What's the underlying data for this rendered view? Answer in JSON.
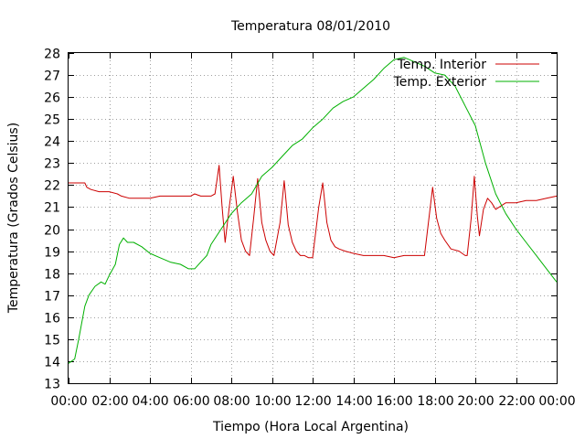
{
  "chart_data": {
    "type": "line",
    "title": "Temperatura 08/01/2010",
    "xlabel": "Tiempo (Hora Local Argentina)",
    "ylabel": "Temperatura (Grados Celsius)",
    "xlim": [
      0,
      24
    ],
    "ylim": [
      13,
      28
    ],
    "grid": true,
    "legend_position": "top-right",
    "x_ticks": [
      "00:00",
      "02:00",
      "04:00",
      "06:00",
      "08:00",
      "10:00",
      "12:00",
      "14:00",
      "16:00",
      "18:00",
      "20:00",
      "22:00",
      "00:00"
    ],
    "y_ticks": [
      "13",
      "14",
      "15",
      "16",
      "17",
      "18",
      "19",
      "20",
      "21",
      "22",
      "23",
      "24",
      "25",
      "26",
      "27",
      "28"
    ],
    "series": [
      {
        "name": "Temp. Interior",
        "color": "#cc0000",
        "x": [
          0,
          0.8,
          0.9,
          1.1,
          1.5,
          2.0,
          2.4,
          2.6,
          3.0,
          3.5,
          4.0,
          4.5,
          5.0,
          5.5,
          6.0,
          6.2,
          6.5,
          7.0,
          7.2,
          7.4,
          7.55,
          7.7,
          7.9,
          8.1,
          8.3,
          8.5,
          8.7,
          8.9,
          9.1,
          9.3,
          9.5,
          9.7,
          9.9,
          10.1,
          10.4,
          10.6,
          10.8,
          11.0,
          11.2,
          11.4,
          11.6,
          11.8,
          12.0,
          12.3,
          12.5,
          12.7,
          12.9,
          13.1,
          13.3,
          13.6,
          14.0,
          14.5,
          15.0,
          15.5,
          16.0,
          16.5,
          17.0,
          17.5,
          17.9,
          18.1,
          18.3,
          18.5,
          18.8,
          19.2,
          19.5,
          19.6,
          19.8,
          19.95,
          20.1,
          20.2,
          20.4,
          20.6,
          20.8,
          21.0,
          21.5,
          22.0,
          22.5,
          23.0,
          23.5,
          24.0
        ],
        "y": [
          22.1,
          22.1,
          21.9,
          21.8,
          21.7,
          21.7,
          21.6,
          21.5,
          21.4,
          21.4,
          21.4,
          21.5,
          21.5,
          21.5,
          21.5,
          21.6,
          21.5,
          21.5,
          21.6,
          22.9,
          21.0,
          19.4,
          21.0,
          22.4,
          20.8,
          19.5,
          19.0,
          18.8,
          20.5,
          22.3,
          20.3,
          19.5,
          19.0,
          18.8,
          20.3,
          22.2,
          20.2,
          19.4,
          19.0,
          18.8,
          18.8,
          18.7,
          18.7,
          21.0,
          22.1,
          20.3,
          19.5,
          19.2,
          19.1,
          19.0,
          18.9,
          18.8,
          18.8,
          18.8,
          18.7,
          18.8,
          18.8,
          18.8,
          21.9,
          20.5,
          19.8,
          19.5,
          19.1,
          19.0,
          18.8,
          18.8,
          20.5,
          22.4,
          20.6,
          19.7,
          20.9,
          21.4,
          21.2,
          20.9,
          21.2,
          21.2,
          21.3,
          21.3,
          21.4,
          21.5
        ]
      },
      {
        "name": "Temp. Exterior",
        "color": "#00b000",
        "x": [
          0,
          0.3,
          0.5,
          0.8,
          1.0,
          1.3,
          1.6,
          1.8,
          2.0,
          2.3,
          2.5,
          2.7,
          2.9,
          3.2,
          3.6,
          4.0,
          4.5,
          5.0,
          5.5,
          5.9,
          6.2,
          6.5,
          6.8,
          7.0,
          7.5,
          8.0,
          8.5,
          9.0,
          9.5,
          10.0,
          10.5,
          11.0,
          11.5,
          12.0,
          12.5,
          13.0,
          13.5,
          14.0,
          14.5,
          15.0,
          15.5,
          16.0,
          16.5,
          17.0,
          17.5,
          18.0,
          18.5,
          19.0,
          19.5,
          20.0,
          20.5,
          21.0,
          21.5,
          22.0,
          22.5,
          23.0,
          23.5,
          24.0
        ],
        "y": [
          13.9,
          14.1,
          15.0,
          16.5,
          17.0,
          17.4,
          17.6,
          17.5,
          17.9,
          18.4,
          19.3,
          19.6,
          19.4,
          19.4,
          19.2,
          18.9,
          18.7,
          18.5,
          18.4,
          18.2,
          18.2,
          18.5,
          18.8,
          19.3,
          20.0,
          20.7,
          21.2,
          21.6,
          22.4,
          22.8,
          23.3,
          23.8,
          24.1,
          24.6,
          25.0,
          25.5,
          25.8,
          26.0,
          26.4,
          26.8,
          27.3,
          27.7,
          27.8,
          27.6,
          27.4,
          27.1,
          27.0,
          26.5,
          25.6,
          24.7,
          23.0,
          21.6,
          20.7,
          20.0,
          19.4,
          18.8,
          18.2,
          17.6
        ]
      }
    ]
  }
}
